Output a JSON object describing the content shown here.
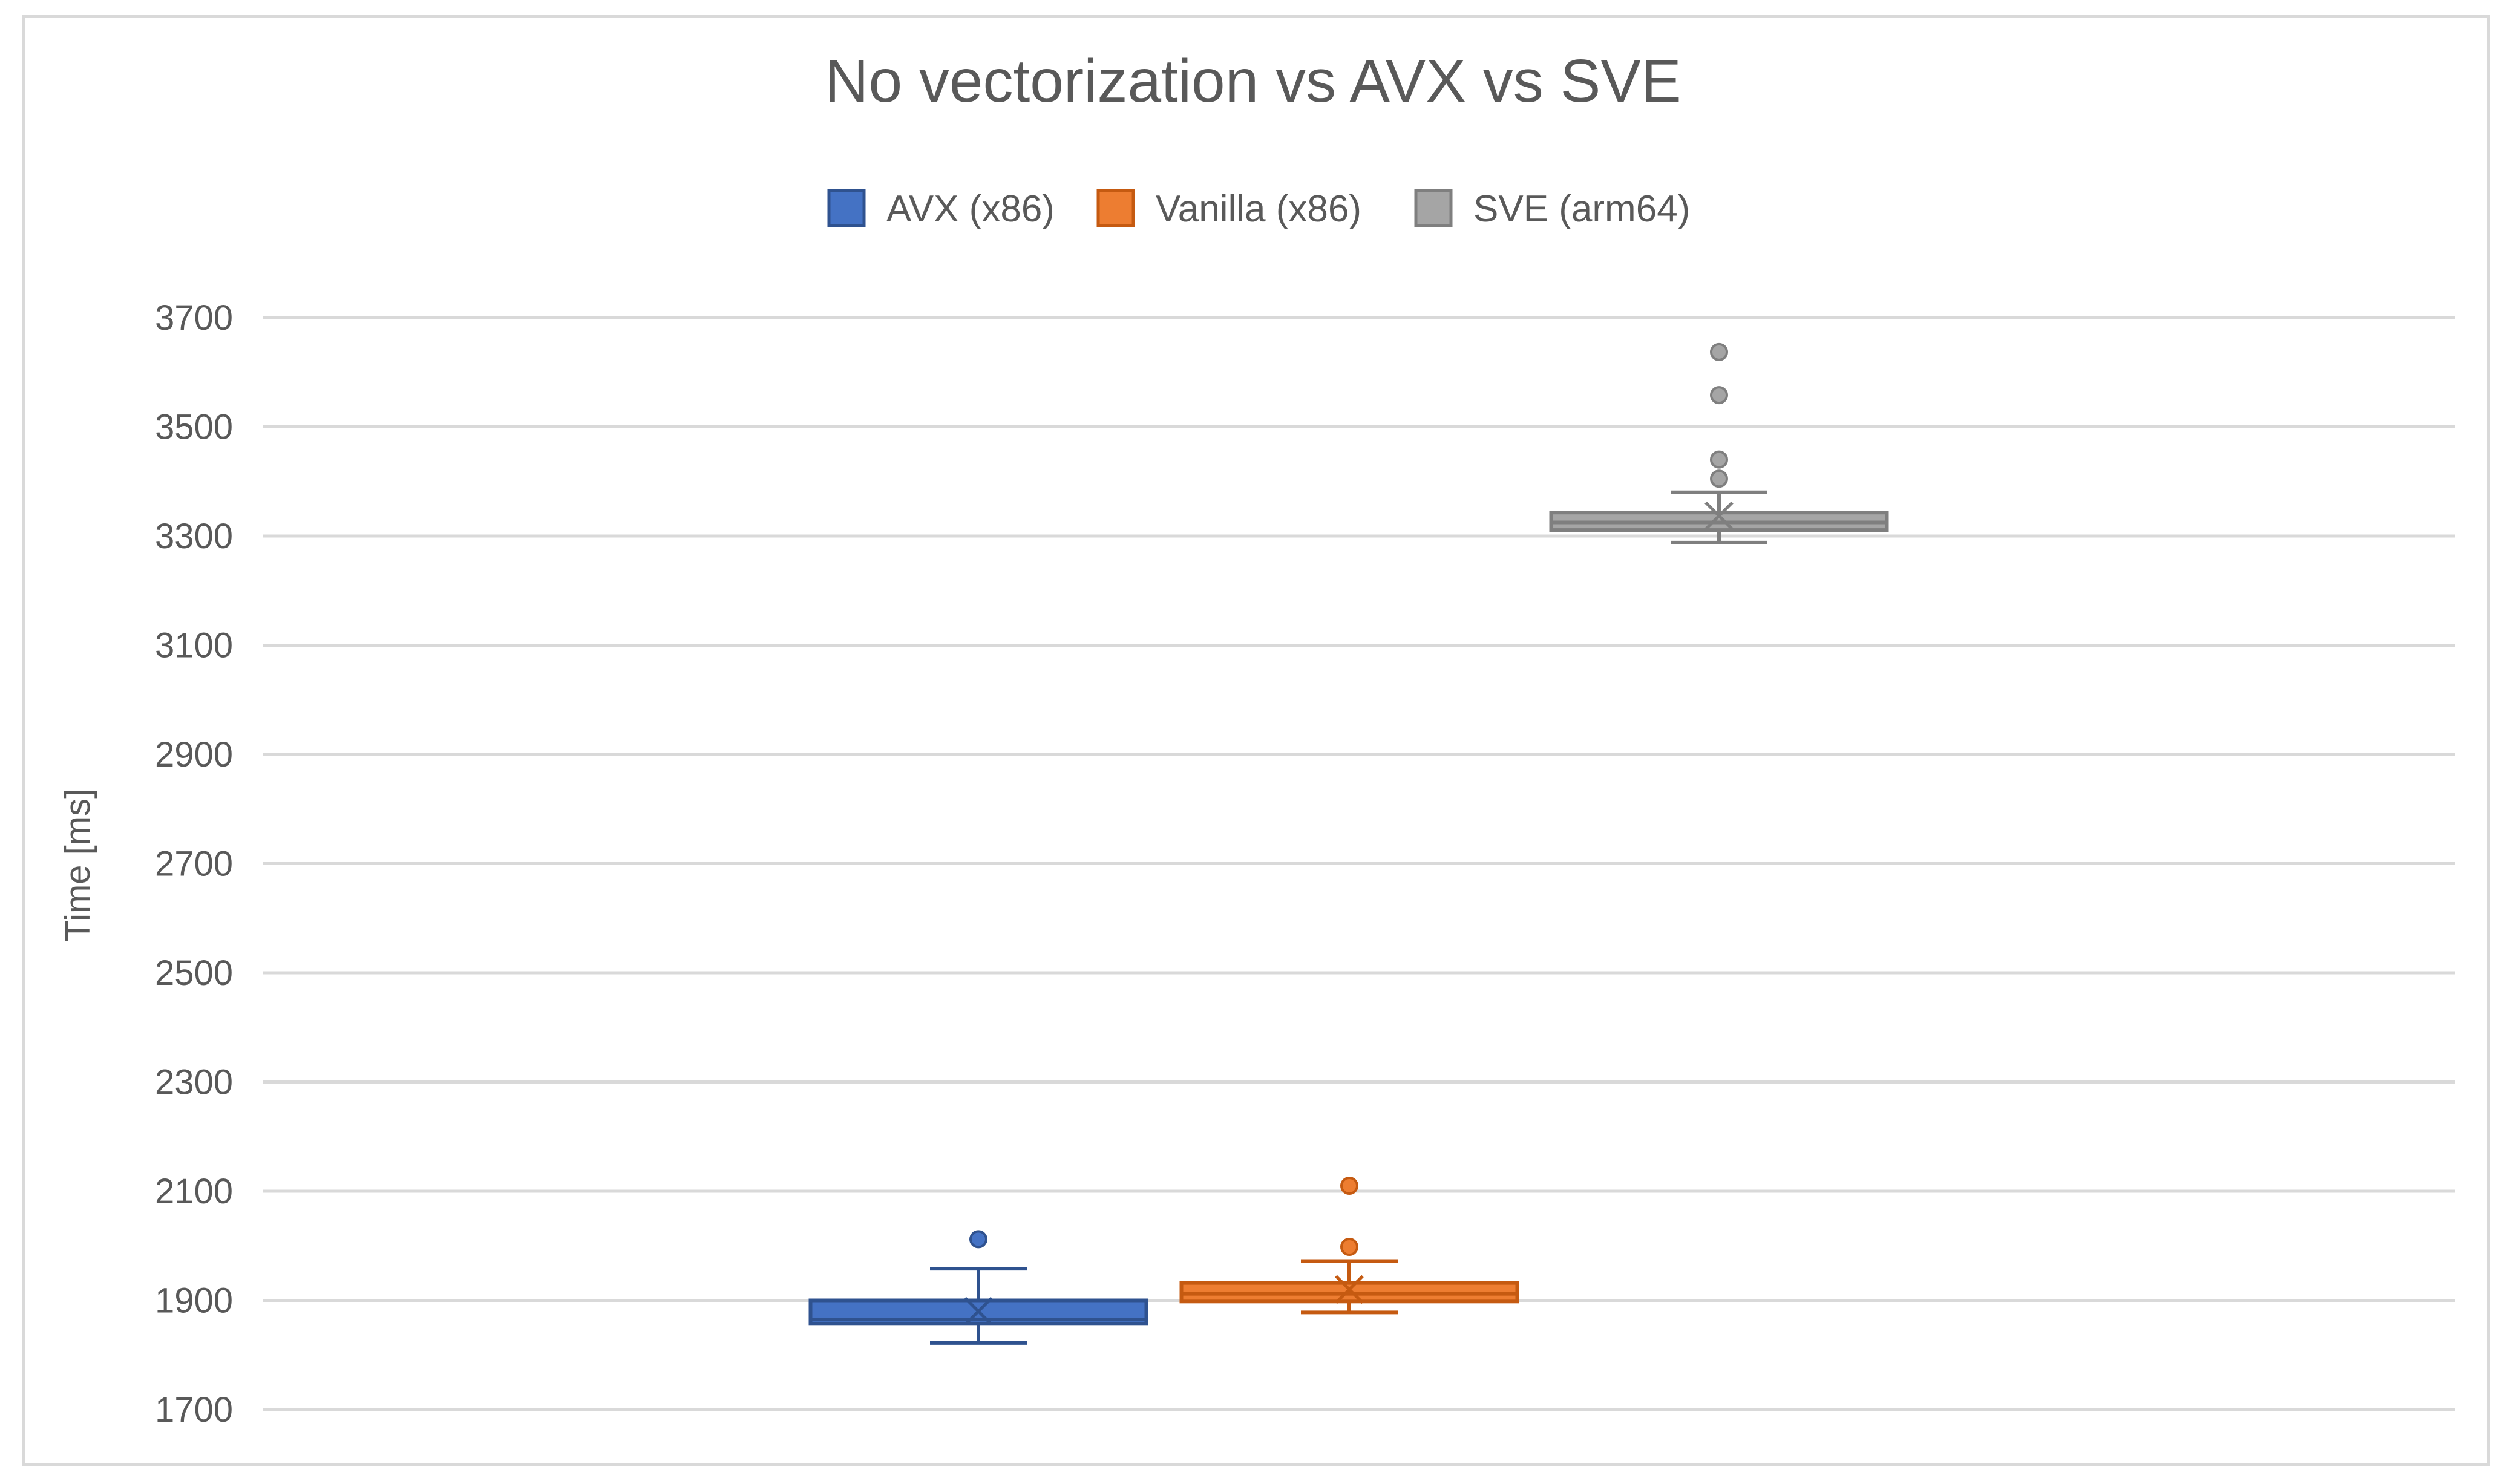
{
  "chart_data": {
    "type": "box",
    "title": "No vectorization vs AVX vs SVE",
    "xlabel": "",
    "ylabel": "Time [ms]",
    "ylim": [
      1700,
      3700
    ],
    "ytick_step": 200,
    "yticks": [
      1700,
      1900,
      2100,
      2300,
      2500,
      2700,
      2900,
      3100,
      3300,
      3500,
      3700
    ],
    "grid": true,
    "legend_position": "top-center",
    "series": [
      {
        "name": "AVX (x86)",
        "color": "#4472c4",
        "stroke": "#2f528f",
        "whisker_low": 1822,
        "q1": 1857,
        "median": 1865,
        "q3": 1900,
        "whisker_high": 1958,
        "mean": 1880,
        "outliers": [
          2012
        ]
      },
      {
        "name": "Vanilla (x86)",
        "color": "#ed7d31",
        "stroke": "#c55a11",
        "whisker_low": 1878,
        "q1": 1898,
        "median": 1912,
        "q3": 1932,
        "whisker_high": 1972,
        "mean": 1920,
        "outliers": [
          1998,
          2110
        ]
      },
      {
        "name": "SVE (arm64)",
        "color": "#a5a5a5",
        "stroke": "#7f7f7f",
        "whisker_low": 3288,
        "q1": 3311,
        "median": 3325,
        "q3": 3343,
        "whisker_high": 3380,
        "mean": 3337,
        "outliers": [
          3405,
          3440,
          3558,
          3637
        ]
      }
    ]
  }
}
